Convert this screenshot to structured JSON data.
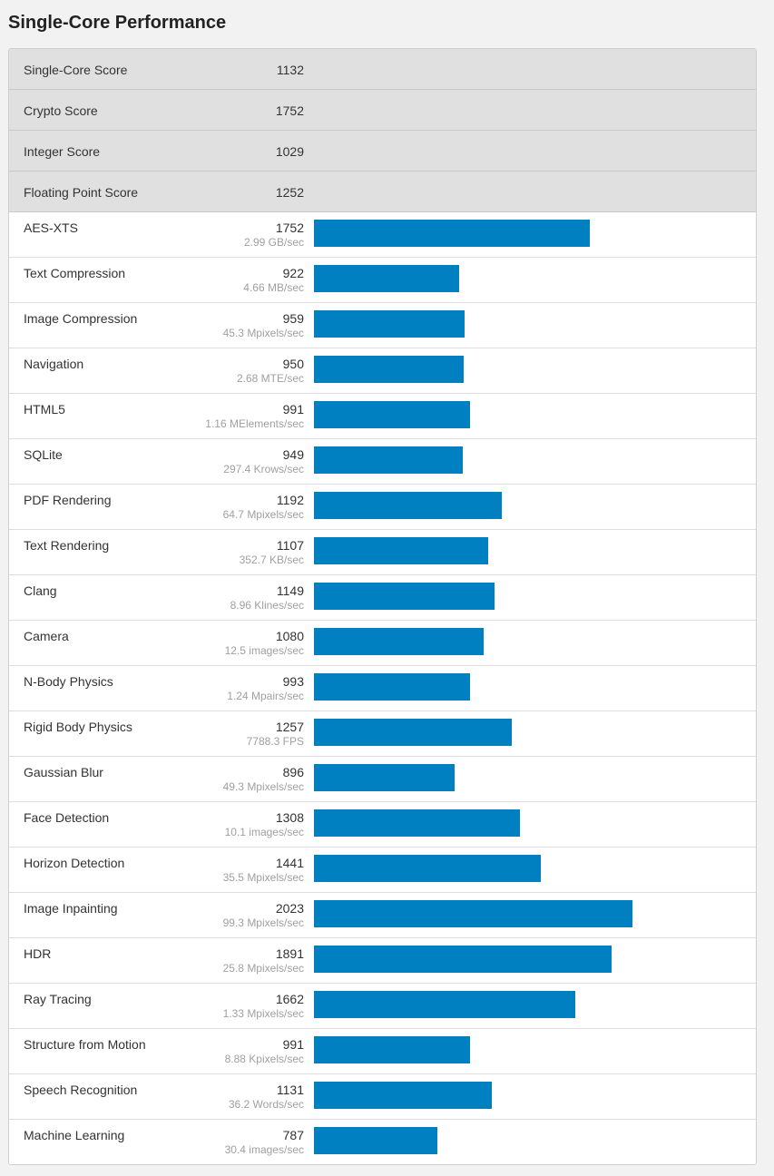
{
  "header": {
    "title": "Single-Core Performance"
  },
  "colors": {
    "bar": "#0080c0",
    "summary_bg": "#e0e0e0"
  },
  "bar_scale_max": 2400,
  "summary": [
    {
      "name": "Single-Core Score",
      "score": "1132"
    },
    {
      "name": "Crypto Score",
      "score": "1752"
    },
    {
      "name": "Integer Score",
      "score": "1029"
    },
    {
      "name": "Floating Point Score",
      "score": "1252"
    }
  ],
  "benchmarks": [
    {
      "name": "AES-XTS",
      "score": "1752",
      "rate": "2.99 GB/sec",
      "value": 1752
    },
    {
      "name": "Text Compression",
      "score": "922",
      "rate": "4.66 MB/sec",
      "value": 922
    },
    {
      "name": "Image Compression",
      "score": "959",
      "rate": "45.3 Mpixels/sec",
      "value": 959
    },
    {
      "name": "Navigation",
      "score": "950",
      "rate": "2.68 MTE/sec",
      "value": 950
    },
    {
      "name": "HTML5",
      "score": "991",
      "rate": "1.16 MElements/sec",
      "value": 991
    },
    {
      "name": "SQLite",
      "score": "949",
      "rate": "297.4 Krows/sec",
      "value": 949
    },
    {
      "name": "PDF Rendering",
      "score": "1192",
      "rate": "64.7 Mpixels/sec",
      "value": 1192
    },
    {
      "name": "Text Rendering",
      "score": "1107",
      "rate": "352.7 KB/sec",
      "value": 1107
    },
    {
      "name": "Clang",
      "score": "1149",
      "rate": "8.96 Klines/sec",
      "value": 1149
    },
    {
      "name": "Camera",
      "score": "1080",
      "rate": "12.5 images/sec",
      "value": 1080
    },
    {
      "name": "N-Body Physics",
      "score": "993",
      "rate": "1.24 Mpairs/sec",
      "value": 993
    },
    {
      "name": "Rigid Body Physics",
      "score": "1257",
      "rate": "7788.3 FPS",
      "value": 1257
    },
    {
      "name": "Gaussian Blur",
      "score": "896",
      "rate": "49.3 Mpixels/sec",
      "value": 896
    },
    {
      "name": "Face Detection",
      "score": "1308",
      "rate": "10.1 images/sec",
      "value": 1308
    },
    {
      "name": "Horizon Detection",
      "score": "1441",
      "rate": "35.5 Mpixels/sec",
      "value": 1441
    },
    {
      "name": "Image Inpainting",
      "score": "2023",
      "rate": "99.3 Mpixels/sec",
      "value": 2023
    },
    {
      "name": "HDR",
      "score": "1891",
      "rate": "25.8 Mpixels/sec",
      "value": 1891
    },
    {
      "name": "Ray Tracing",
      "score": "1662",
      "rate": "1.33 Mpixels/sec",
      "value": 1662
    },
    {
      "name": "Structure from Motion",
      "score": "991",
      "rate": "8.88 Kpixels/sec",
      "value": 991
    },
    {
      "name": "Speech Recognition",
      "score": "1131",
      "rate": "36.2 Words/sec",
      "value": 1131
    },
    {
      "name": "Machine Learning",
      "score": "787",
      "rate": "30.4 images/sec",
      "value": 787
    }
  ]
}
